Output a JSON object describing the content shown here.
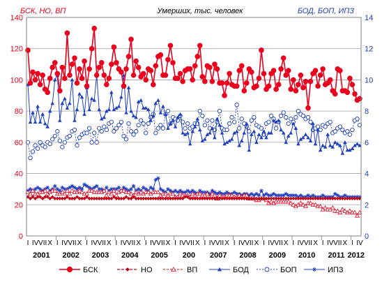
{
  "chart_data": {
    "type": "line",
    "title": "Умерших, тыс. человек",
    "left_axis": {
      "caption": "БСК, НО, ВП",
      "color": "#e8001c",
      "ylim": [
        0,
        140
      ],
      "ticks": [
        "0",
        "20",
        "40",
        "60",
        "80",
        "100",
        "120",
        "140"
      ]
    },
    "right_axis": {
      "caption": "БОД, БОП, ИПЗ",
      "color": "#1f3fbf",
      "ylim": [
        0,
        14
      ],
      "ticks": [
        "0",
        "2",
        "4",
        "6",
        "8",
        "10",
        "12",
        "14"
      ]
    },
    "month_ticks": [
      "I",
      "IV",
      "VII",
      "X"
    ],
    "years": [
      "2001",
      "2002",
      "2003",
      "2004",
      "2005",
      "200",
      "2007",
      "2008",
      "2009",
      "2010",
      "2011",
      "2012"
    ],
    "x_start": "2001-01",
    "months_count": 136,
    "grid": true,
    "legend_placement": "bottom",
    "series": [
      {
        "name": "БСК",
        "axis": "left",
        "color": "#e8001c",
        "values": [
          119,
          98,
          105,
          100,
          104,
          97,
          103,
          94,
          92,
          101,
          108,
          111,
          104,
          93,
          108,
          101,
          130,
          103,
          110,
          114,
          98,
          107,
          101,
          112,
          96,
          107,
          120,
          133,
          103,
          108,
          111,
          103,
          97,
          101,
          110,
          121,
          111,
          107,
          105,
          96,
          107,
          115,
          126,
          103,
          112,
          108,
          102,
          104,
          100,
          107,
          106,
          97,
          109,
          115,
          116,
          103,
          103,
          113,
          122,
          111,
          101,
          101,
          104,
          99,
          106,
          107,
          107,
          100,
          109,
          115,
          122,
          102,
          99,
          109,
          108,
          99,
          110,
          107,
          98,
          98,
          90,
          98,
          104,
          97,
          96,
          96,
          106,
          109,
          93,
          98,
          107,
          105,
          95,
          96,
          101,
          119,
          104,
          94,
          96,
          104,
          106,
          94,
          97,
          107,
          114,
          103,
          106,
          94,
          100,
          93,
          97,
          103,
          95,
          99,
          82,
          99,
          104,
          106,
          96,
          103,
          107,
          97,
          98,
          100,
          93,
          91,
          107,
          106,
          93,
          93,
          92,
          101,
          97,
          91,
          87,
          88
        ]
      },
      {
        "name": "НО",
        "axis": "left",
        "color": "#c00018",
        "values": [
          25,
          24,
          25,
          24,
          25,
          25,
          24,
          25,
          25,
          24,
          25,
          24,
          24,
          24,
          24,
          24,
          25,
          24,
          24,
          24,
          25,
          24,
          24,
          24,
          25,
          24,
          24,
          24,
          24,
          24,
          24,
          24,
          24,
          24,
          24,
          25,
          24,
          24,
          24,
          24,
          25,
          24,
          24,
          25,
          24,
          24,
          24,
          24,
          24,
          24,
          24,
          24,
          24,
          24,
          24,
          24,
          24,
          24,
          24,
          24,
          24,
          24,
          24,
          24,
          25,
          25,
          24,
          24,
          24,
          24,
          24,
          24,
          24,
          24,
          24,
          24,
          24,
          24,
          24,
          24,
          24,
          24,
          24,
          24,
          24,
          24,
          24,
          24,
          24,
          24,
          24,
          24,
          24,
          24,
          24,
          24,
          24,
          24,
          24,
          24,
          24,
          24,
          24,
          24,
          24,
          24,
          24,
          24,
          24,
          24,
          24,
          24,
          24,
          24,
          24,
          24,
          24,
          24,
          24,
          24,
          24,
          24,
          24,
          24,
          24,
          24,
          24,
          24,
          24,
          24,
          24,
          24,
          24,
          24,
          24,
          24
        ]
      },
      {
        "name": "ВП",
        "axis": "left",
        "color": "#e8001c",
        "values": [
          28,
          27,
          29,
          27,
          27,
          28,
          28,
          29,
          27,
          28,
          29,
          29,
          27,
          27,
          28,
          27,
          29,
          27,
          29,
          28,
          28,
          29,
          28,
          27,
          27,
          29,
          29,
          28,
          28,
          28,
          28,
          29,
          26,
          28,
          27,
          29,
          26,
          28,
          29,
          29,
          28,
          28,
          27,
          26,
          28,
          27,
          28,
          27,
          28,
          28,
          27,
          28,
          28,
          28,
          26,
          27,
          27,
          26,
          27,
          27,
          25,
          25,
          27,
          26,
          26,
          26,
          25,
          27,
          26,
          27,
          27,
          26,
          26,
          27,
          25,
          27,
          26,
          24,
          26,
          25,
          25,
          26,
          26,
          26,
          25,
          25,
          26,
          25,
          26,
          26,
          24,
          24,
          24,
          23,
          23,
          24,
          24,
          23,
          21,
          22,
          21,
          22,
          22,
          22,
          22,
          22,
          22,
          21,
          20,
          19,
          20,
          21,
          20,
          19,
          21,
          21,
          20,
          20,
          19,
          19,
          17,
          18,
          17,
          17,
          18,
          16,
          16,
          15,
          17,
          16,
          15,
          16,
          15,
          15,
          13,
          15
        ]
      },
      {
        "name": "БОД",
        "axis": "right",
        "color": "#1f3fbf",
        "values": [
          9.7,
          7.3,
          7.9,
          7.3,
          8.3,
          7.3,
          7.8,
          7.2,
          7.0,
          8.0,
          8.5,
          10.0,
          10.3,
          7.4,
          8.5,
          8.8,
          8.2,
          8.5,
          10.0,
          7.4,
          8.1,
          9.1,
          8.9,
          7.8,
          9.5,
          8.1,
          8.8,
          8.7,
          10.3,
          8.1,
          7.5,
          7.6,
          8.0,
          8.1,
          9.2,
          8.1,
          8.2,
          8.3,
          8.9,
          10.3,
          7.9,
          9.5,
          8.0,
          7.7,
          7.6,
          8.6,
          8.7,
          8.2,
          8.2,
          8.1,
          7.4,
          7.7,
          8.5,
          8.7,
          7.9,
          8.3,
          7.8,
          6.9,
          7.2,
          7.4,
          7.0,
          7.6,
          7.8,
          6.6,
          6.5,
          6.6,
          5.9,
          6.7,
          7.0,
          7.5,
          6.8,
          6.1,
          6.2,
          6.5,
          6.6,
          6.9,
          6.3,
          7.5,
          7.1,
          6.6,
          5.9,
          6.0,
          6.1,
          6.2,
          6.6,
          6.7,
          5.8,
          6.1,
          6.6,
          7.2,
          5.5,
          6.5,
          6.7,
          6.0,
          6.5,
          6.3,
          6.7,
          6.3,
          6.6,
          6.6,
          7.4,
          7.3,
          7.4,
          6.8,
          6.6,
          6.0,
          6.4,
          6.6,
          7.2,
          6.9,
          5.9,
          6.2,
          6.3,
          6.5,
          6.3,
          6.1,
          7.2,
          5.9,
          6.8,
          5.5,
          5.8,
          5.7,
          6.5,
          5.8,
          5.7,
          6.0,
          5.9,
          5.8,
          5.3,
          6.0,
          5.5,
          5.5,
          5.6,
          5.8,
          5.9,
          5.8
        ]
      },
      {
        "name": "БОП",
        "axis": "right",
        "color": "#1f3fbf",
        "values": [
          6.0,
          5.0,
          5.4,
          5.8,
          5.6,
          6.0,
          5.8,
          5.7,
          6.0,
          5.9,
          6.2,
          6.4,
          6.7,
          6.1,
          5.7,
          6.0,
          6.3,
          6.4,
          6.7,
          6.8,
          5.8,
          6.3,
          6.5,
          6.6,
          6.6,
          6.9,
          6.0,
          6.6,
          6.0,
          6.9,
          6.7,
          7.0,
          6.8,
          7.2,
          7.3,
          6.7,
          6.9,
          7.1,
          7.3,
          6.4,
          6.2,
          7.2,
          6.7,
          6.5,
          6.7,
          7.1,
          7.4,
          7.2,
          6.6,
          7.2,
          7.6,
          7.8,
          6.6,
          6.9,
          7.1,
          6.9,
          7.8,
          8.0,
          7.2,
          7.6,
          7.5,
          7.4,
          7.7,
          7.3,
          6.9,
          7.2,
          6.9,
          7.0,
          7.2,
          7.2,
          8.0,
          7.7,
          7.1,
          7.4,
          6.9,
          7.4,
          6.8,
          7.3,
          8.0,
          6.9,
          6.8,
          6.8,
          7.2,
          7.6,
          7.3,
          8.4,
          6.9,
          7.5,
          7.2,
          7.0,
          6.7,
          7.4,
          7.6,
          7.1,
          7.0,
          6.9,
          6.5,
          7.2,
          7.3,
          7.7,
          7.5,
          6.9,
          7.3,
          7.7,
          7.9,
          7.6,
          7.2,
          7.5,
          7.3,
          7.6,
          8.0,
          7.8,
          7.7,
          7.5,
          7.6,
          7.3,
          6.8,
          6.9,
          7.0,
          6.8,
          7.1,
          7.0,
          7.2,
          7.3,
          6.6,
          6.7,
          6.9,
          7.0,
          6.8,
          6.6,
          6.7,
          6.5,
          6.8,
          7.4,
          7.5,
          7.1
        ]
      },
      {
        "name": "ИПЗ",
        "axis": "right",
        "color": "#1f3fbf",
        "values": [
          2.9,
          3.0,
          2.9,
          3.0,
          3.1,
          3.0,
          2.9,
          3.0,
          3.1,
          2.9,
          3.0,
          3.2,
          3.0,
          2.9,
          3.1,
          3.0,
          3.0,
          3.1,
          3.2,
          3.1,
          3.0,
          3.1,
          3.0,
          3.3,
          3.2,
          3.1,
          3.0,
          3.1,
          3.2,
          3.0,
          3.0,
          2.9,
          3.1,
          2.9,
          3.0,
          3.0,
          3.0,
          3.1,
          2.9,
          3.1,
          3.0,
          2.9,
          3.0,
          3.2,
          2.9,
          3.0,
          2.9,
          3.1,
          3.0,
          2.9,
          3.1,
          3.0,
          3.6,
          3.7,
          3.0,
          2.9,
          2.8,
          3.0,
          2.9,
          2.8,
          2.9,
          2.8,
          2.9,
          2.8,
          2.8,
          2.9,
          2.8,
          2.9,
          2.8,
          2.7,
          2.9,
          2.8,
          2.8,
          2.8,
          2.7,
          2.9,
          2.8,
          2.7,
          2.8,
          2.7,
          2.7,
          2.8,
          2.7,
          2.7,
          2.8,
          2.7,
          2.7,
          2.6,
          2.7,
          2.7,
          2.6,
          2.7,
          2.6,
          2.7,
          2.6,
          2.9,
          2.6,
          2.7,
          2.6,
          2.6,
          2.7,
          2.6,
          2.6,
          2.6,
          2.6,
          2.7,
          2.6,
          2.6,
          2.6,
          2.6,
          2.5,
          2.6,
          2.5,
          2.5,
          2.6,
          2.5,
          2.6,
          2.5,
          2.5,
          2.5,
          2.6,
          2.5,
          2.5,
          2.5,
          2.5,
          2.7,
          2.6,
          2.5,
          2.5,
          2.6,
          2.5,
          2.5,
          2.5,
          2.5,
          2.5,
          2.5
        ]
      }
    ]
  }
}
